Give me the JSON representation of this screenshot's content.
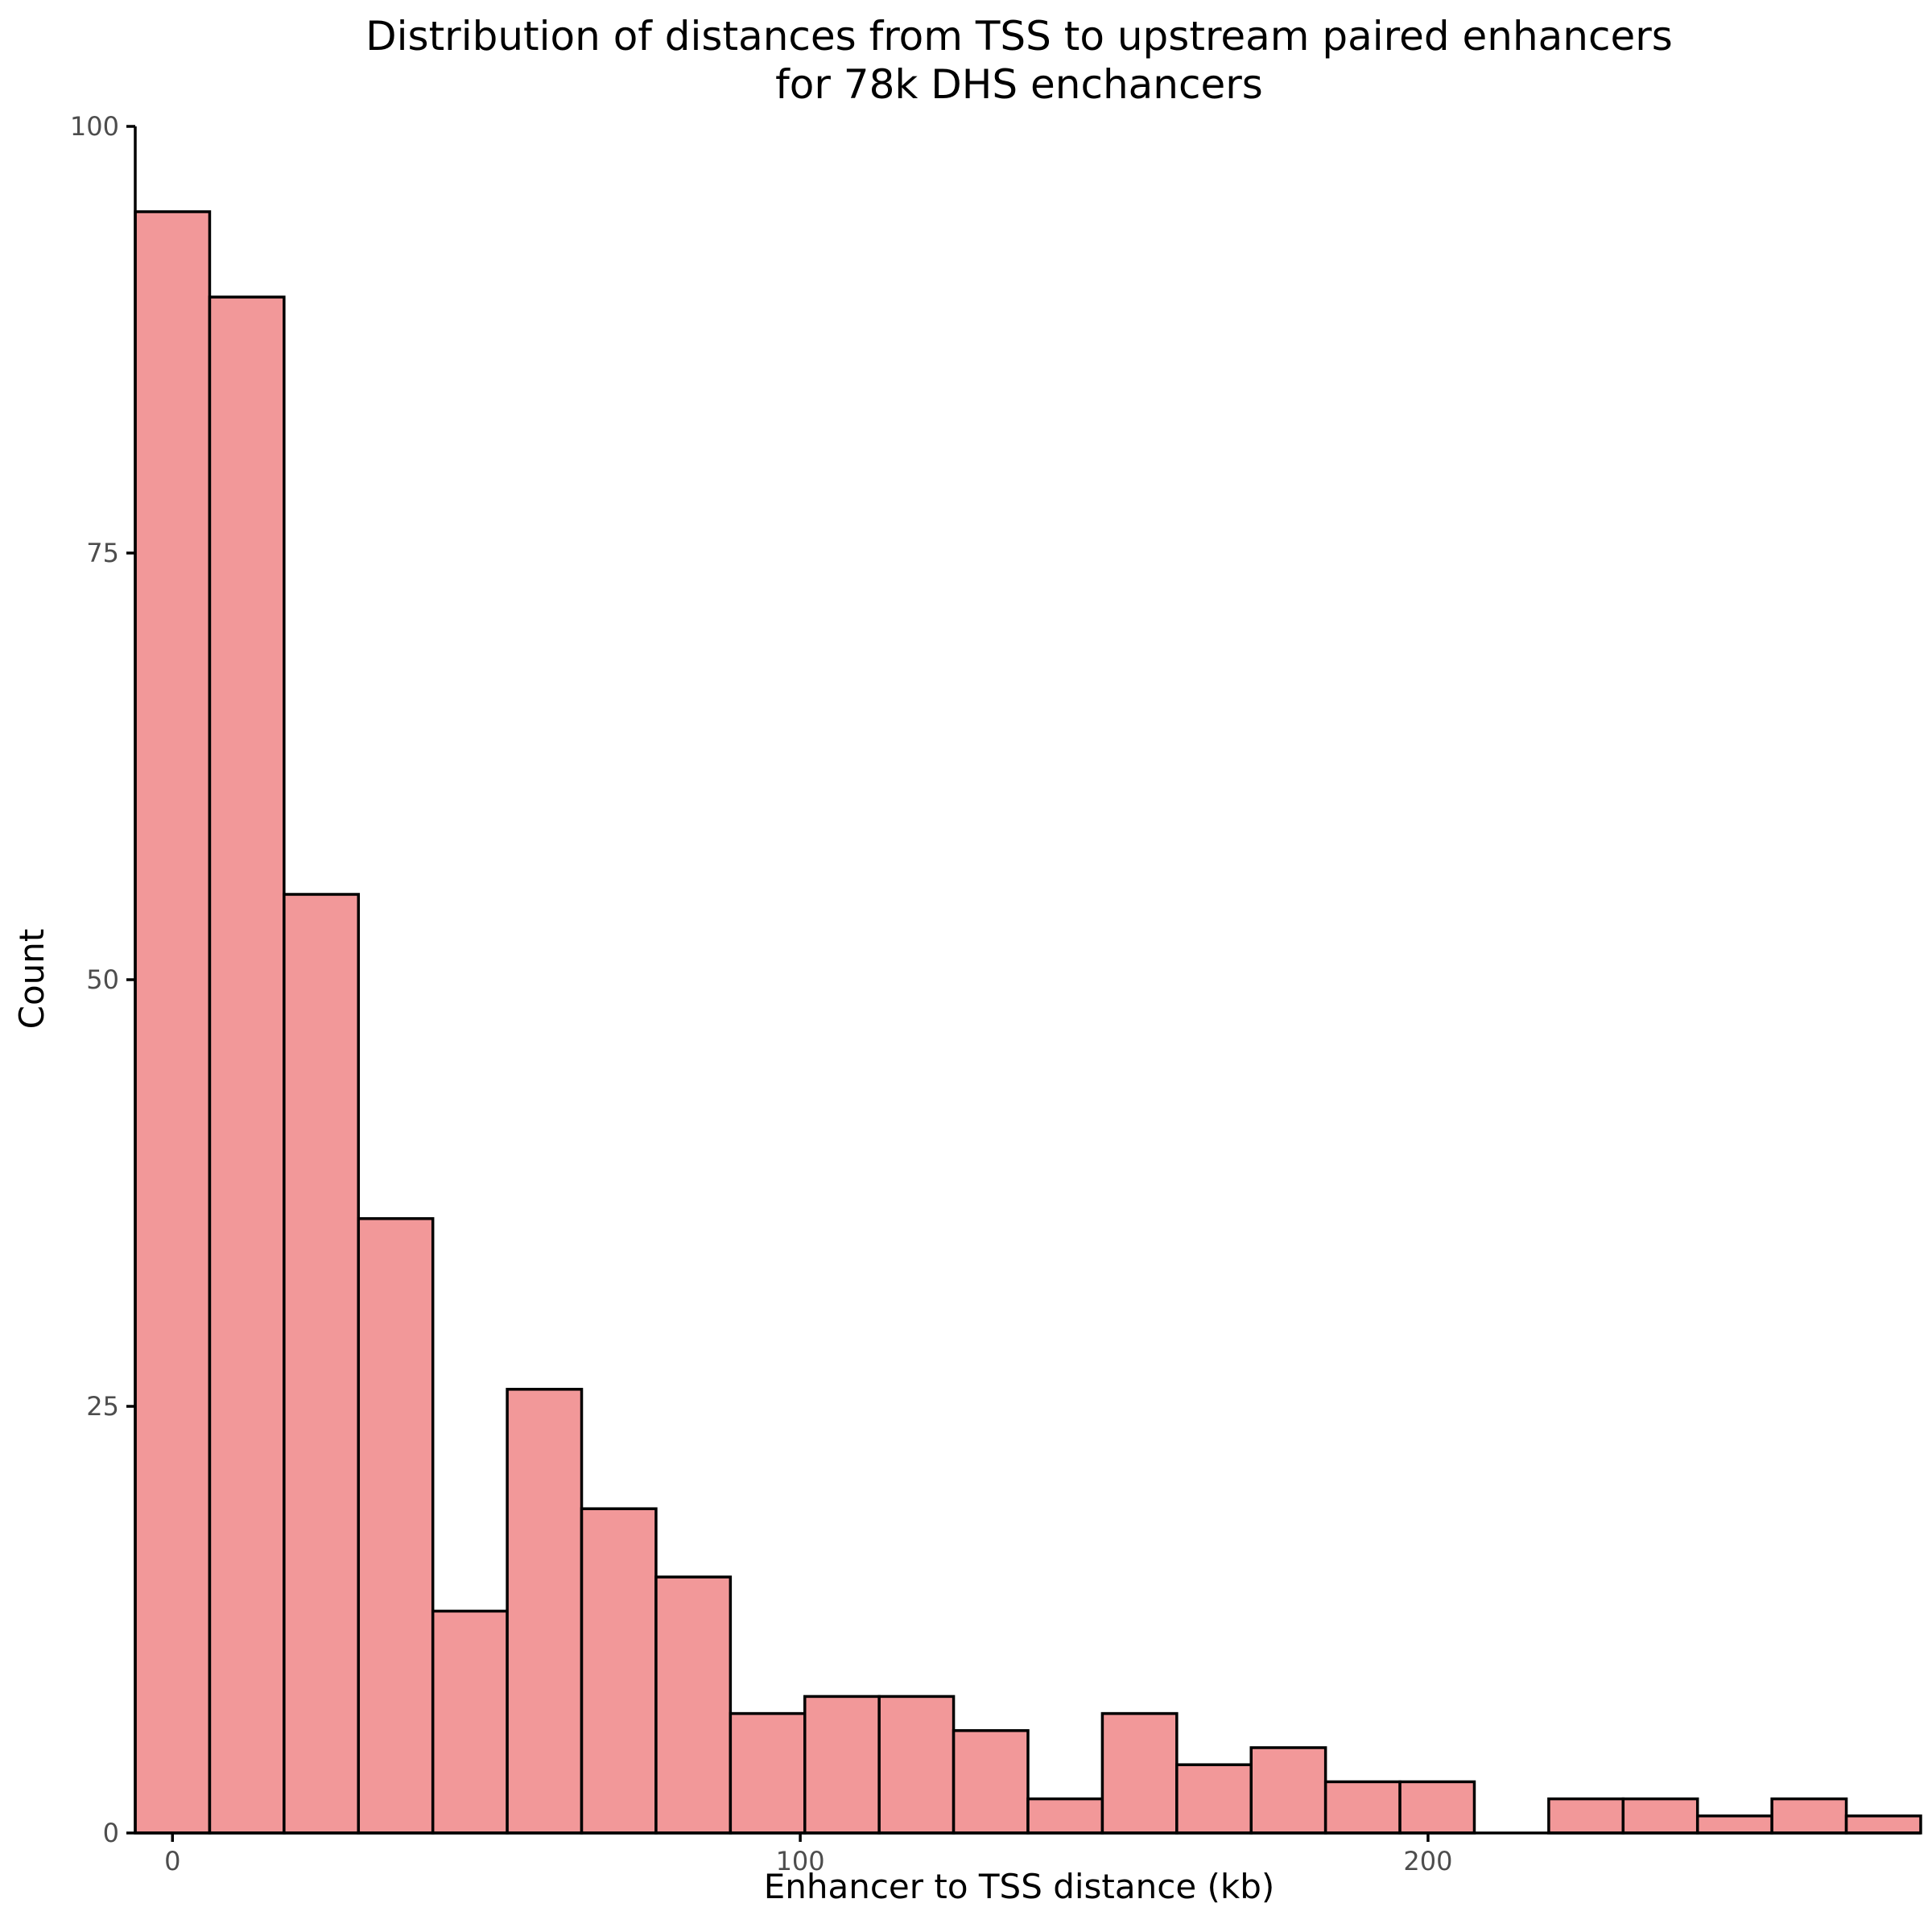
{
  "chart_data": {
    "type": "bar",
    "title": "Distribution of distances from TSS to upstream paired enhancers",
    "subtitle": "for 78k DHS enchancers",
    "xlabel": "Enhancer to TSS distance (kb)",
    "ylabel": "Count",
    "fill_color": "#f29899",
    "outline_color": "#000000",
    "bin_width": 11.85,
    "x_bin_centers": [
      0,
      11.85,
      23.7,
      35.55,
      47.4,
      59.25,
      71.1,
      82.95,
      94.8,
      106.65,
      118.5,
      130.35,
      142.2,
      154.05,
      165.9,
      177.75,
      189.6,
      201.45,
      213.3,
      225.15,
      237,
      248.85,
      260.7,
      272.55
    ],
    "values": [
      95,
      90,
      55,
      36,
      13,
      26,
      19,
      15,
      7,
      8,
      8,
      6,
      2,
      7,
      4,
      5,
      3,
      3,
      0,
      2,
      2,
      1,
      2,
      1
    ],
    "xlim": [
      -5.93,
      278.48
    ],
    "ylim": [
      0,
      100
    ],
    "x_ticks": [
      "0",
      "100",
      "200"
    ],
    "x_tick_values": [
      0,
      100,
      200
    ],
    "y_ticks": [
      "0",
      "25",
      "50",
      "75",
      "100"
    ],
    "y_tick_values": [
      0,
      25,
      50,
      75,
      100
    ],
    "grid": false,
    "legend": "none"
  }
}
